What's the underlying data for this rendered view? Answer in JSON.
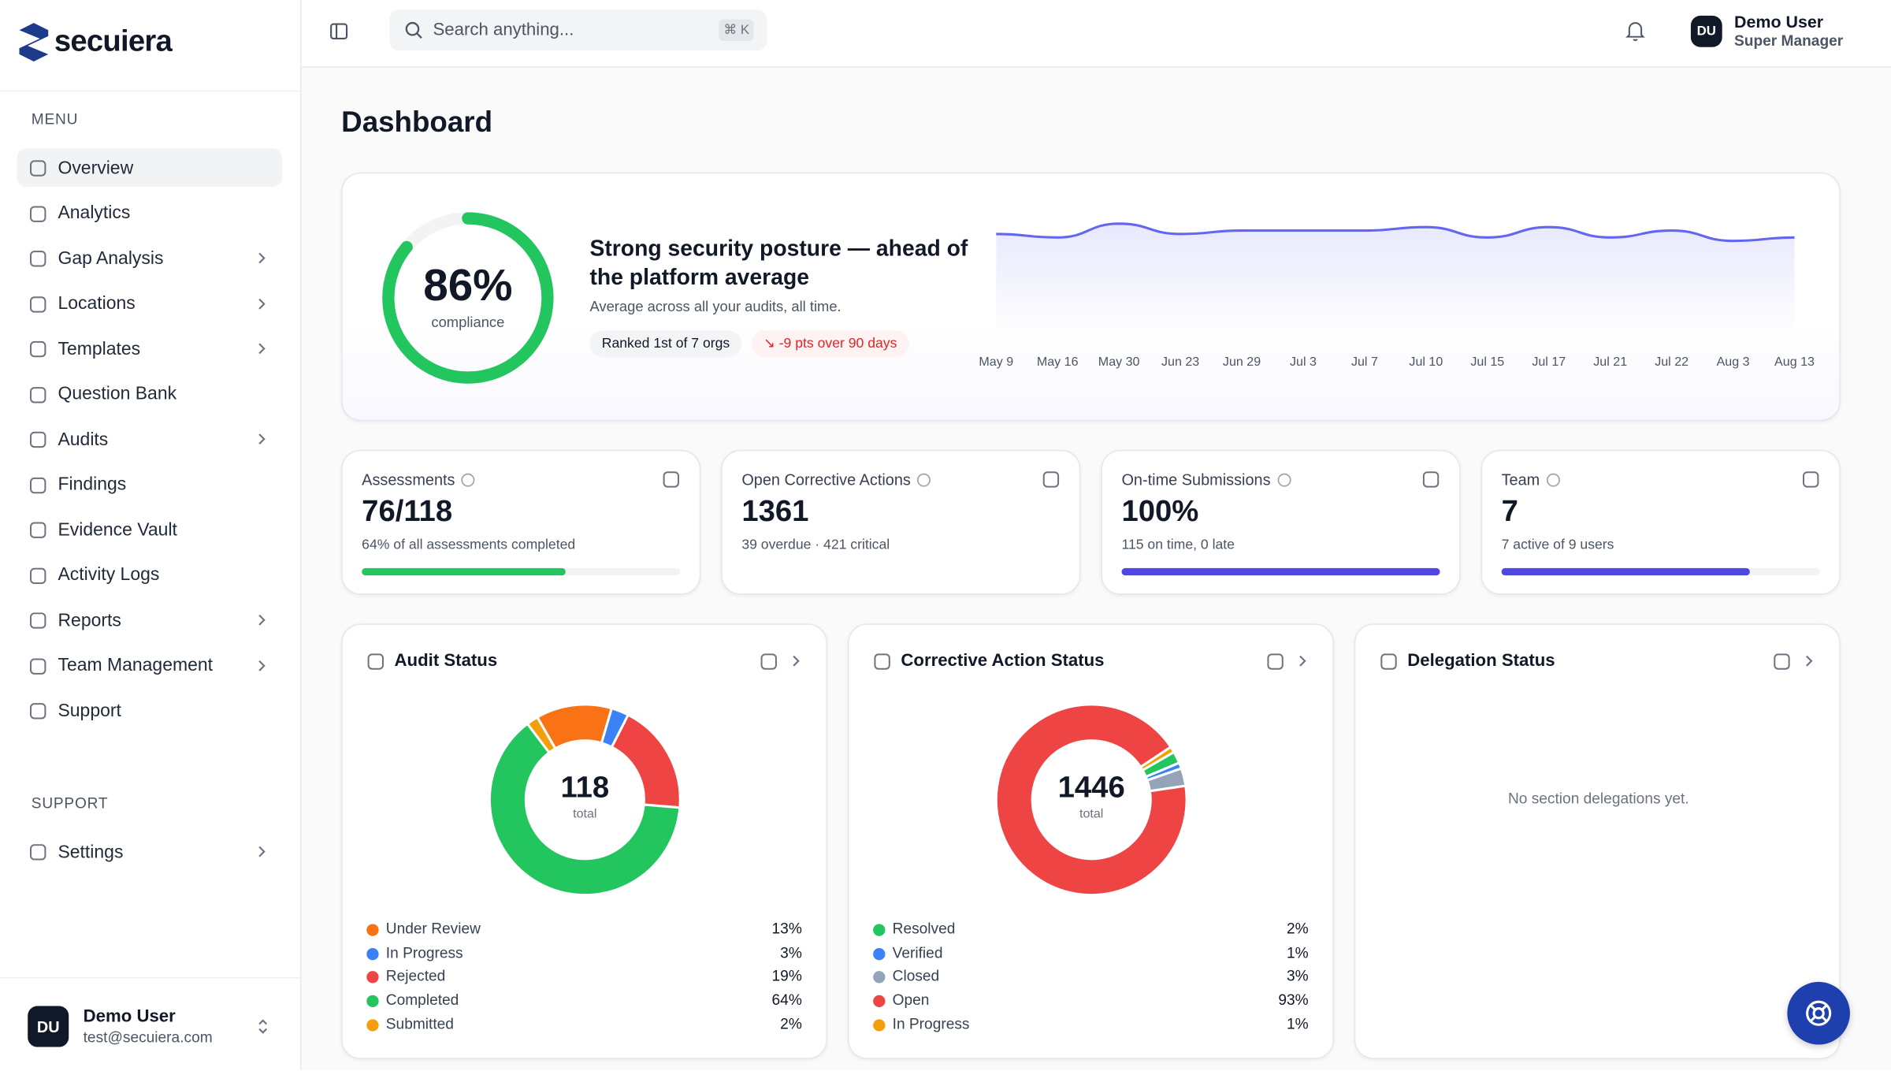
{
  "brand": "secuiera",
  "sidebar": {
    "menu_label": "MENU",
    "menu": [
      {
        "label": "Overview",
        "expandable": false,
        "active": true
      },
      {
        "label": "Analytics",
        "expandable": false
      },
      {
        "label": "Gap Analysis",
        "expandable": true
      },
      {
        "label": "Locations",
        "expandable": true
      },
      {
        "label": "Templates",
        "expandable": true
      },
      {
        "label": "Question Bank",
        "expandable": false
      },
      {
        "label": "Audits",
        "expandable": true
      },
      {
        "label": "Findings",
        "expandable": false
      },
      {
        "label": "Evidence Vault",
        "expandable": false
      },
      {
        "label": "Activity Logs",
        "expandable": false
      },
      {
        "label": "Reports",
        "expandable": true
      },
      {
        "label": "Team Management",
        "expandable": true
      },
      {
        "label": "Support",
        "expandable": false
      }
    ],
    "support_label": "SUPPORT",
    "support": [
      {
        "label": "Settings",
        "expandable": true
      }
    ],
    "user": {
      "initials": "DU",
      "name": "Demo User",
      "email": "test@secuiera.com"
    }
  },
  "topbar": {
    "search_placeholder": "Search anything...",
    "shortcut": "⌘ K",
    "user": {
      "initials": "DU",
      "name": "Demo User",
      "role": "Super Manager"
    }
  },
  "page_title": "Dashboard",
  "hero": {
    "compliance": {
      "value": 86,
      "label": "86%",
      "caption": "compliance",
      "color": "#22c55e"
    },
    "heading": "Strong security posture — ahead of the platform average",
    "subheading": "Average across all your audits, all time.",
    "badges": [
      "Ranked 1st of 7 orgs",
      "↘ -9 pts over 90 days"
    ],
    "trend": {
      "x": [
        "May 9",
        "May 16",
        "May 30",
        "Jun 23",
        "Jun 29",
        "Jul 3",
        "Jul 7",
        "Jul 10",
        "Jul 15",
        "Jul 17",
        "Jul 21",
        "Jul 22",
        "Aug 3",
        "Aug 13"
      ],
      "values": [
        88,
        87,
        91,
        88,
        89,
        89,
        89,
        90,
        87,
        90,
        87,
        89,
        86,
        87
      ],
      "ylim": [
        60,
        95
      ],
      "color": "#6366f1"
    }
  },
  "stats": [
    {
      "title": "Assessments",
      "value": "76/118",
      "sub": "64% of all assessments completed",
      "progress": 64,
      "color": "#22c55e"
    },
    {
      "title": "Open Corrective Actions",
      "value": "1361",
      "sub": "39 overdue · 421 critical"
    },
    {
      "title": "On-time Submissions",
      "value": "100%",
      "sub": "115 on time, 0 late",
      "progress": 100,
      "color": "#4f46e5"
    },
    {
      "title": "Team",
      "value": "7",
      "sub": "7 active of 9 users",
      "progress": 78,
      "color": "#4f46e5"
    }
  ],
  "donuts": [
    {
      "title": "Audit Status",
      "total": "118",
      "total_caption": "total",
      "items": [
        {
          "name": "Under Review",
          "color": "#f97316",
          "value": 13,
          "label": "13%"
        },
        {
          "name": "In Progress",
          "color": "#3b82f6",
          "value": 3,
          "label": "3%"
        },
        {
          "name": "Rejected",
          "color": "#ef4444",
          "value": 19,
          "label": "19%"
        },
        {
          "name": "Completed",
          "color": "#22c55e",
          "value": 64,
          "label": "64%"
        },
        {
          "name": "Submitted",
          "color": "#f59e0b",
          "value": 2,
          "label": "2%"
        }
      ]
    },
    {
      "title": "Corrective Action Status",
      "total": "1446",
      "total_caption": "total",
      "items": [
        {
          "name": "Resolved",
          "color": "#22c55e",
          "value": 2,
          "label": "2%"
        },
        {
          "name": "Verified",
          "color": "#3b82f6",
          "value": 1,
          "label": "1%"
        },
        {
          "name": "Closed",
          "color": "#94a3b8",
          "value": 3,
          "label": "3%"
        },
        {
          "name": "Open",
          "color": "#ef4444",
          "value": 93,
          "label": "93%"
        },
        {
          "name": "In Progress",
          "color": "#f59e0b",
          "value": 1,
          "label": "1%"
        }
      ]
    },
    {
      "title": "Delegation Status",
      "empty": "No section delegations yet."
    }
  ]
}
